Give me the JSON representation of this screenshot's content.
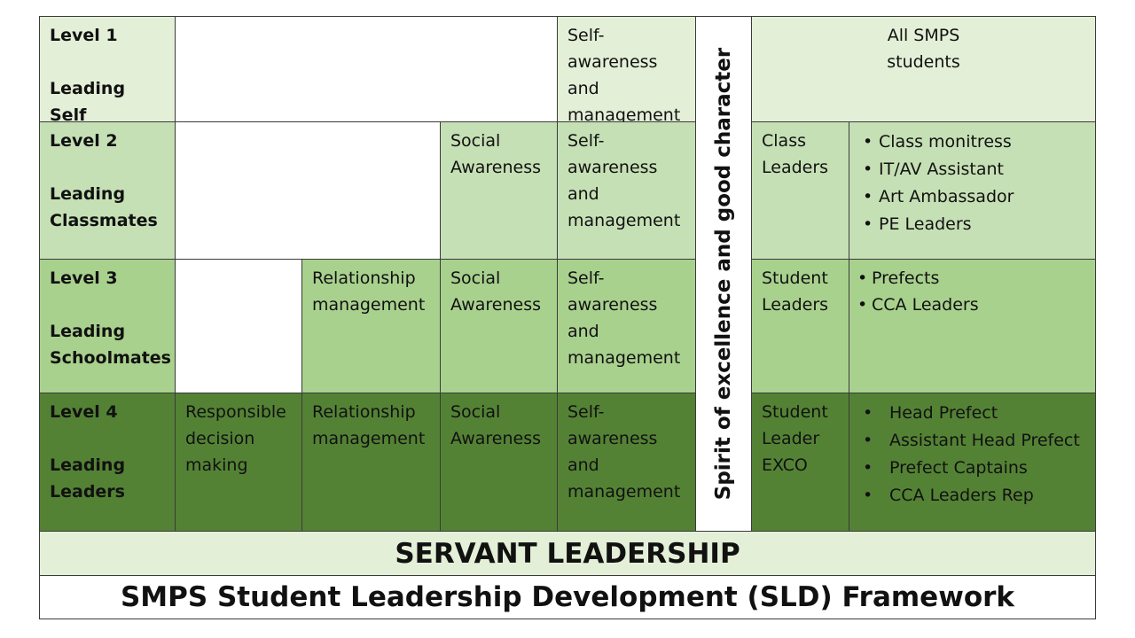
{
  "levels": [
    {
      "number": "Level 1",
      "name": "Leading Self"
    },
    {
      "number": "Level 2",
      "name": "Leading Classmates"
    },
    {
      "number": "Level 3",
      "name": "Leading Schoolmates"
    },
    {
      "number": "Level 4",
      "name": "Leading Leaders"
    }
  ],
  "competencies": {
    "responsible": "Responsible decision making",
    "relationship": "Relationship management",
    "social": "Social Awareness",
    "self": "Self-awareness and management"
  },
  "vertical_label": "Spirit of excellence and good character",
  "groups": {
    "level1": "All SMPS students",
    "level2": "Class Leaders",
    "level3": "Student Leaders",
    "level4": "Student Leader EXCO"
  },
  "roles": {
    "level2": [
      "Class monitress",
      "IT/AV Assistant",
      "Art Ambassador",
      "PE Leaders"
    ],
    "level3": [
      "Prefects",
      "CCA Leaders"
    ],
    "level4": [
      "Head Prefect",
      "Assistant Head Prefect",
      "Prefect Captains",
      "CCA Leaders Rep"
    ]
  },
  "footer": {
    "servant": "SERVANT LEADERSHIP",
    "title": "SMPS Student Leadership Development (SLD) Framework"
  },
  "colors": {
    "level1": "#e3efd7",
    "level2": "#c6e0b5",
    "level3": "#a9d18e",
    "level4": "#548235"
  }
}
